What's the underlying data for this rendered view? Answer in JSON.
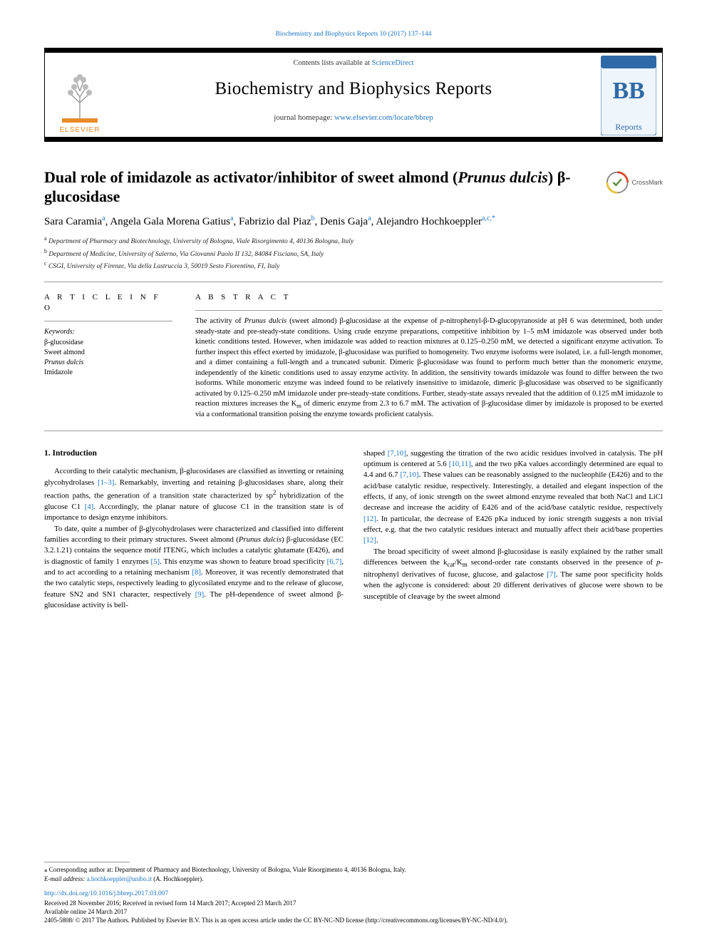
{
  "top": {
    "bbr_line": "Biochemistry and Biophysics Reports 10 (2017) 137–144"
  },
  "header": {
    "contents_prefix": "Contents lists available at ",
    "contents_link": "ScienceDirect",
    "journal_name": "Biochemistry and Biophysics Reports",
    "homepage_prefix": "journal homepage: ",
    "homepage_url": "www.elsevier.com/locate/bbrep",
    "elsevier_label": "ELSEVIER",
    "bb_label": "BB",
    "bb_sub": "Reports"
  },
  "crossmark": {
    "label": "CrossMark"
  },
  "title": "Dual role of imidazole as activator/inhibitor of sweet almond (Prunus dulcis) β-glucosidase",
  "authors_html": "Sara Caramia<sup>a</sup>, Angela Gala Morena Gatius<sup>a</sup>, Fabrizio dal Piaz<sup>b</sup>, Denis Gaja<sup>a</sup>, Alejandro Hochkoeppler<sup>a,c,*</sup>",
  "affiliations": [
    "Department of Pharmacy and Biotechnology, University of Bologna, Viale Risorgimento 4, 40136 Bologna, Italy",
    "Department of Medicine, University of Salerno, Via Giovanni Paolo II 132, 84084 Fisciano, SA, Italy",
    "CSGI, University of Firenze, Via della Lastruccia 3, 50019 Sesto Fiorentino, FI, Italy"
  ],
  "affil_markers": [
    "a",
    "b",
    "c"
  ],
  "article_info_label": "A R T I C L E  I N F O",
  "abstract_label": "A B S T R A C T",
  "keywords_label": "Keywords:",
  "keywords": [
    "β-glucosidase",
    "Sweet almond",
    "Prunus dulcis",
    "Imidazole"
  ],
  "abstract": "The activity of Prunus dulcis (sweet almond) β-glucosidase at the expense of p-nitrophenyl-β-D-glucopyranoside at pH 6 was determined, both under steady-state and pre-steady-state conditions. Using crude enzyme preparations, competitive inhibition by 1–5 mM imidazole was observed under both kinetic conditions tested. However, when imidazole was added to reaction mixtures at 0.125–0.250 mM, we detected a significant enzyme activation. To further inspect this effect exerted by imidazole, β-glucosidase was purified to homogeneity. Two enzyme isoforms were isolated, i.e. a full-length monomer, and a dimer containing a full-length and a truncated subunit. Dimeric β-glucosidase was found to perform much better than the monomeric enzyme, independently of the kinetic conditions used to assay enzyme activity. In addition, the sensitivity towards imidazole was found to differ between the two isoforms. While monomeric enzyme was indeed found to be relatively insensitive to imidazole, dimeric β-glucosidase was observed to be significantly activated by 0.125–0.250 mM imidazole under pre-steady-state conditions. Further, steady-state assays revealed that the addition of 0.125 mM imidazole to reaction mixtures increases the Km of dimeric enzyme from 2.3 to 6.7 mM. The activation of β-glucosidase dimer by imidazole is proposed to be exerted via a conformational transition poising the enzyme towards proficient catalysis.",
  "body": {
    "intro_heading": "1. Introduction",
    "col1": [
      "According to their catalytic mechanism, β-glucosidases are classified as inverting or retaining glycohydrolases [1–3]. Remarkably, inverting and retaining β-glucosidases share, along their reaction paths, the generation of a transition state characterized by sp² hybridization of the glucose C1 [4]. Accordingly, the planar nature of glucose C1 in the transition state is of importance to design enzyme inhibitors.",
      "To date, quite a number of β-glycohydrolases were characterized and classified into different families according to their primary structures. Sweet almond (Prunus dulcis) β-glucosidase (EC 3.2.1.21) contains the sequence motif ITENG, which includes a catalytic glutamate (E426), and is diagnostic of family 1 enzymes [5]. This enzyme was shown to feature broad specificity [6,7], and to act according to a retaining mechanism [8]. Moreover, it was recently demonstrated that the two catalytic steps, respectively leading to glycosilated enzyme and to the release of glucose, feature SN2 and SN1 character, respectively [9]. The pH-dependence of sweet almond β-glucosidase activity is bell-"
    ],
    "col2": [
      "shaped [7,10], suggesting the titration of the two acidic residues involved in catalysis. The pH optimum is centered at 5.6 [10,11], and the two pKa values accordingly determined are equal to 4.4 and 6.7 [7,10]. These values can be reasonably assigned to the nucleophile (E426) and to the acid/base catalytic residue, respectively. Interestingly, a detailed and elegant inspection of the effects, if any, of ionic strength on the sweet almond enzyme revealed that both NaCl and LiCl decrease and increase the acidity of E426 and of the acid/base catalytic residue, respectively [12]. In particular, the decrease of E426 pKa induced by ionic strength suggests a non trivial effect, e.g. that the two catalytic residues interact and mutually affect their acid/base properties [12].",
      "The broad specificity of sweet almond β-glucosidase is easily explained by the rather small differences between the kcat/Km second-order rate constants observed in the presence of p-nitrophenyl derivatives of fucose, glucose, and galactose [7]. The same poor specificity holds when the aglycone is considered: about 20 different derivatives of glucose were shown to be susceptible of cleavage by the sweet almond"
    ]
  },
  "footer": {
    "corr_prefix": "⁎ Corresponding author at: Department of Pharmacy and Biotechnology, University of Bologna, Viale Risorgimento 4, 40136 Bologna, Italy.",
    "email_label": "E-mail address: ",
    "email": "a.hochkoeppler@unibo.it",
    "email_suffix": " (A. Hochkoeppler).",
    "doi": "http://dx.doi.org/10.1016/j.bbrep.2017.03.007",
    "received": "Received 28 November 2016; Received in revised form 14 March 2017; Accepted 23 March 2017",
    "available": "Available online 24 March 2017",
    "license": "2405-5808/ © 2017 The Authors. Published by Elsevier B.V. This is an open access article under the CC BY-NC-ND license (http://creativecommons.org/licenses/BY-NC-ND/4.0/)."
  },
  "colors": {
    "link": "#1a72c4",
    "elsevier_orange": "#e98b2a",
    "bb_blue": "#2f6aa8",
    "bb_bg": "#eef5fb",
    "crossmark_ring": "#d84a2b"
  }
}
